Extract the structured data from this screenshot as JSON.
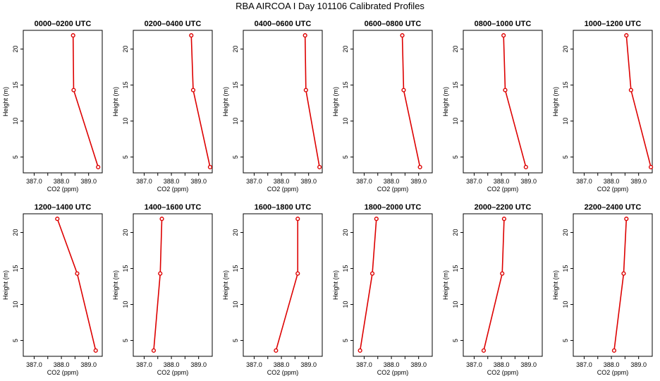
{
  "title": "RBA AIRCOA I  Day 101106  Calibrated Profiles",
  "colors": {
    "line": "#dd0000",
    "axis": "#000000"
  },
  "chart_data": {
    "type": "line",
    "xlabel": "CO2 (ppm)",
    "ylabel": "Height (m)",
    "xlim": [
      386.6,
      389.5
    ],
    "ylim": [
      2.8,
      22.6
    ],
    "xticks": [
      387.0,
      387.5,
      388.0,
      388.5,
      389.0
    ],
    "xtick_labels": [
      "387.0",
      "",
      "388.0",
      "",
      "389.0"
    ],
    "yticks": [
      5,
      10,
      15,
      20
    ],
    "ytick_labels": [
      "5",
      "10",
      "15",
      "20"
    ],
    "heights": [
      21.9,
      14.3,
      3.6
    ],
    "panels": [
      {
        "title": "0000–0200 UTC",
        "values": [
          388.43,
          388.45,
          389.35
        ]
      },
      {
        "title": "0200–0400 UTC",
        "values": [
          388.73,
          388.8,
          389.42
        ]
      },
      {
        "title": "0400–0600 UTC",
        "values": [
          388.87,
          388.9,
          389.4
        ]
      },
      {
        "title": "0600–0800 UTC",
        "values": [
          388.4,
          388.45,
          389.05
        ]
      },
      {
        "title": "0800–1000 UTC",
        "values": [
          388.08,
          388.14,
          388.9
        ]
      },
      {
        "title": "1000–1200 UTC",
        "values": [
          388.55,
          388.72,
          389.45
        ]
      },
      {
        "title": "1200–1400 UTC",
        "values": [
          387.85,
          388.58,
          389.26
        ]
      },
      {
        "title": "1400–1600 UTC",
        "values": [
          387.65,
          387.59,
          387.35
        ]
      },
      {
        "title": "1600–1800 UTC",
        "values": [
          388.6,
          388.6,
          387.8
        ]
      },
      {
        "title": "1800–2000 UTC",
        "values": [
          387.45,
          387.3,
          386.85
        ]
      },
      {
        "title": "2000–2200 UTC",
        "values": [
          388.1,
          388.03,
          387.35
        ]
      },
      {
        "title": "2200–2400 UTC",
        "values": [
          388.55,
          388.45,
          388.1
        ]
      }
    ]
  }
}
